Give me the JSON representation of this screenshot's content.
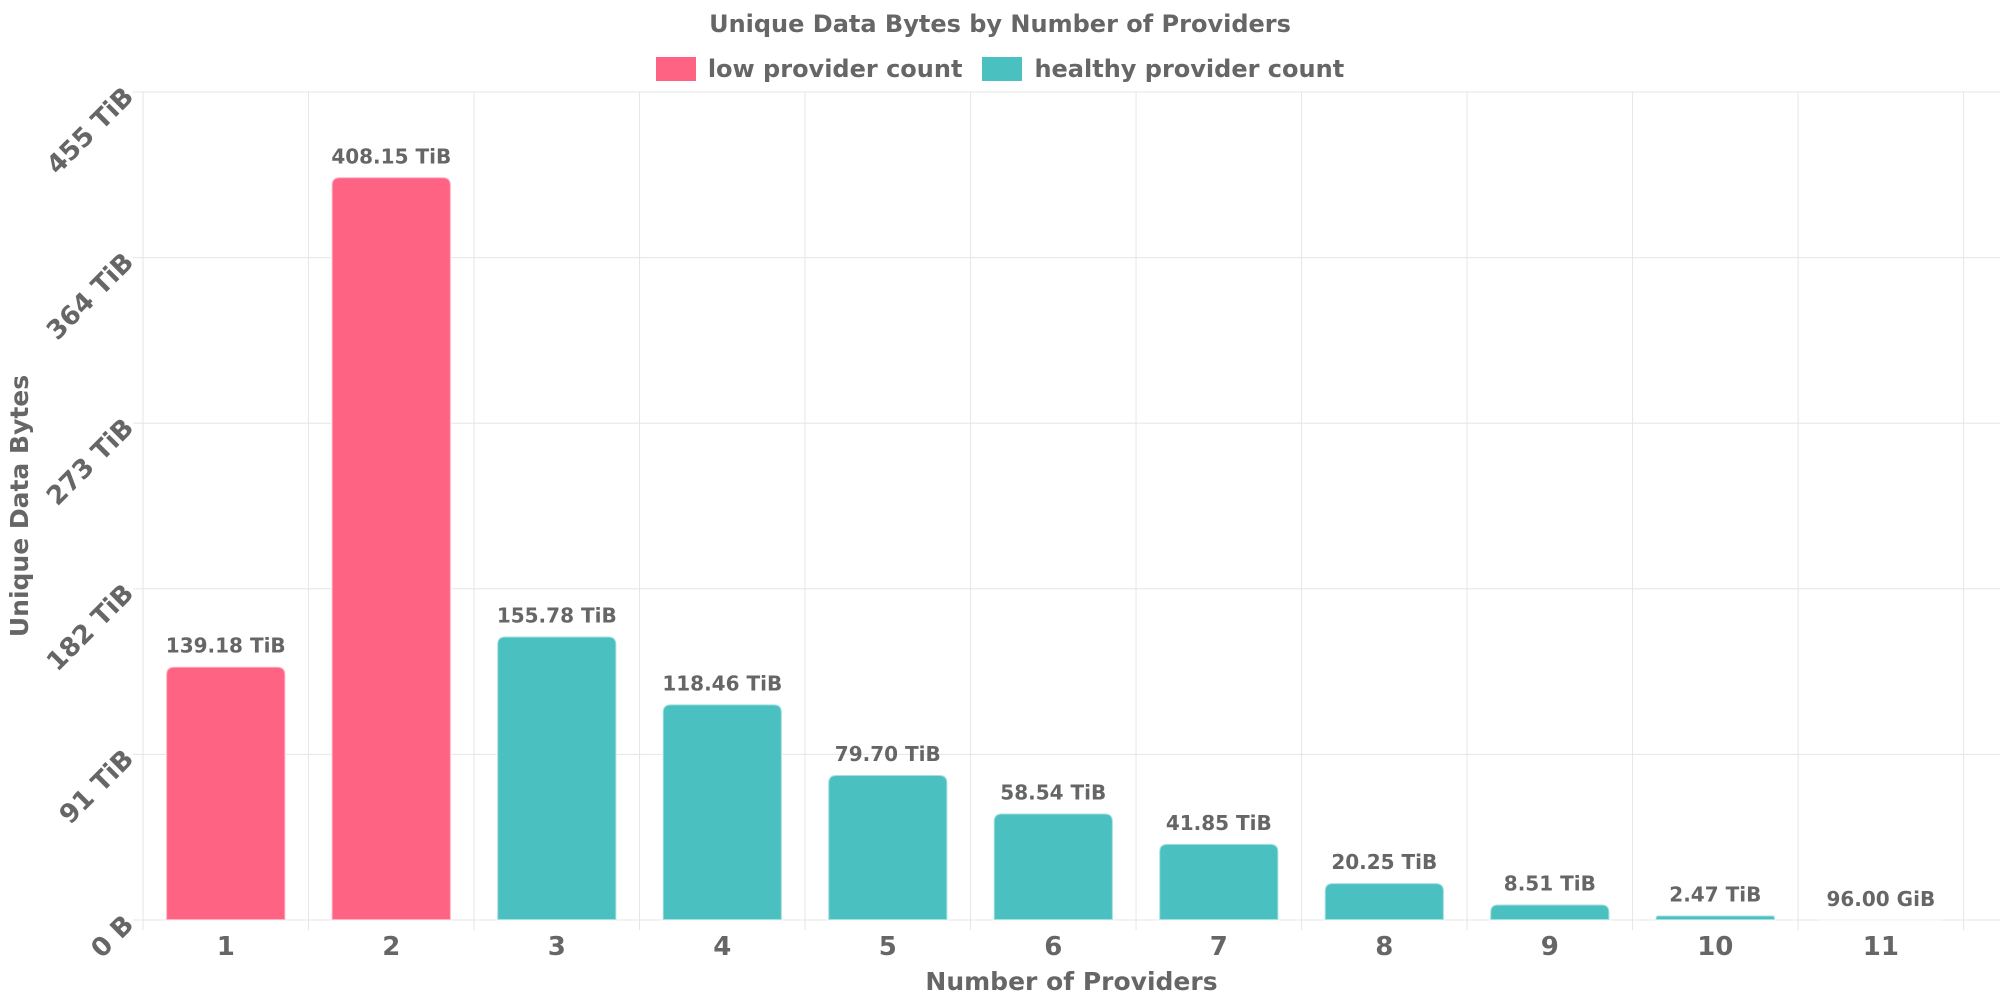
{
  "chart_data": {
    "type": "bar",
    "title": "Unique Data Bytes by Number of Providers",
    "xlabel": "Number of Providers",
    "ylabel": "Unique Data Bytes",
    "categories": [
      "1",
      "2",
      "3",
      "4",
      "5",
      "6",
      "7",
      "8",
      "9",
      "10",
      "11"
    ],
    "values_tib": [
      139.18,
      408.15,
      155.78,
      118.46,
      79.7,
      58.54,
      41.85,
      20.25,
      8.51,
      2.47,
      0.09375
    ],
    "data_labels": [
      "139.18 TiB",
      "408.15 TiB",
      "155.78 TiB",
      "118.46 TiB",
      "79.70 TiB",
      "58.54 TiB",
      "41.85 TiB",
      "20.25 TiB",
      "8.51 TiB",
      "2.47 TiB",
      "96.00 GiB"
    ],
    "series_membership": [
      "low",
      "low",
      "healthy",
      "healthy",
      "healthy",
      "healthy",
      "healthy",
      "healthy",
      "healthy",
      "healthy",
      "healthy"
    ],
    "ylim": [
      0,
      455
    ],
    "y_ticks": [
      0,
      91,
      182,
      273,
      364,
      455
    ],
    "y_tick_labels": [
      "0 B",
      "91 TiB",
      "182 TiB",
      "273 TiB",
      "364 TiB",
      "455 TiB"
    ],
    "legend": [
      {
        "key": "low",
        "label": "low provider count",
        "color": "#FF6384"
      },
      {
        "key": "healthy",
        "label": "healthy provider count",
        "color": "#4BC0C0"
      }
    ],
    "legend_position": "top",
    "grid": true
  }
}
